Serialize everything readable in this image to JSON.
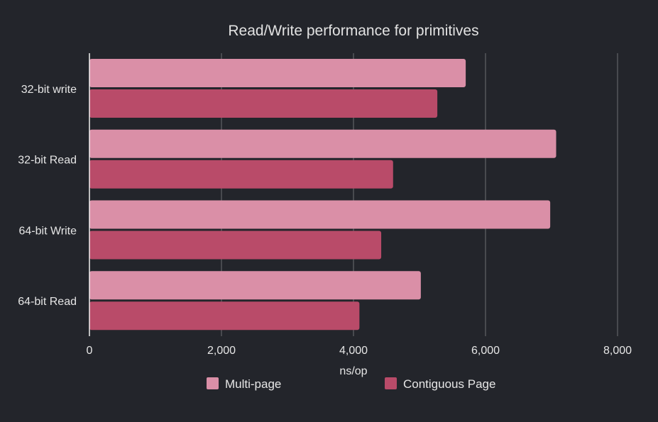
{
  "chart_data": {
    "type": "bar",
    "orientation": "horizontal",
    "title": "Read/Write performance for primitives",
    "xlabel": "ns/op",
    "ylabel": "",
    "xlim": [
      0,
      8000
    ],
    "x_ticks": [
      {
        "value": 0,
        "label": "0"
      },
      {
        "value": 2000,
        "label": "2,000"
      },
      {
        "value": 4000,
        "label": "4,000"
      },
      {
        "value": 6000,
        "label": "6,000"
      },
      {
        "value": 8000,
        "label": "8,000"
      }
    ],
    "grid": true,
    "legend_position": "bottom",
    "categories": [
      "32-bit write",
      "32-bit Read",
      "64-bit Write",
      "64-bit Read"
    ],
    "series": [
      {
        "name": "Multi-page",
        "color": "#da8fa7",
        "values": [
          5700,
          7070,
          6980,
          5020
        ]
      },
      {
        "name": "Contiguous Page",
        "color": "#b94b69",
        "values": [
          5270,
          4600,
          4420,
          4090
        ]
      }
    ]
  }
}
